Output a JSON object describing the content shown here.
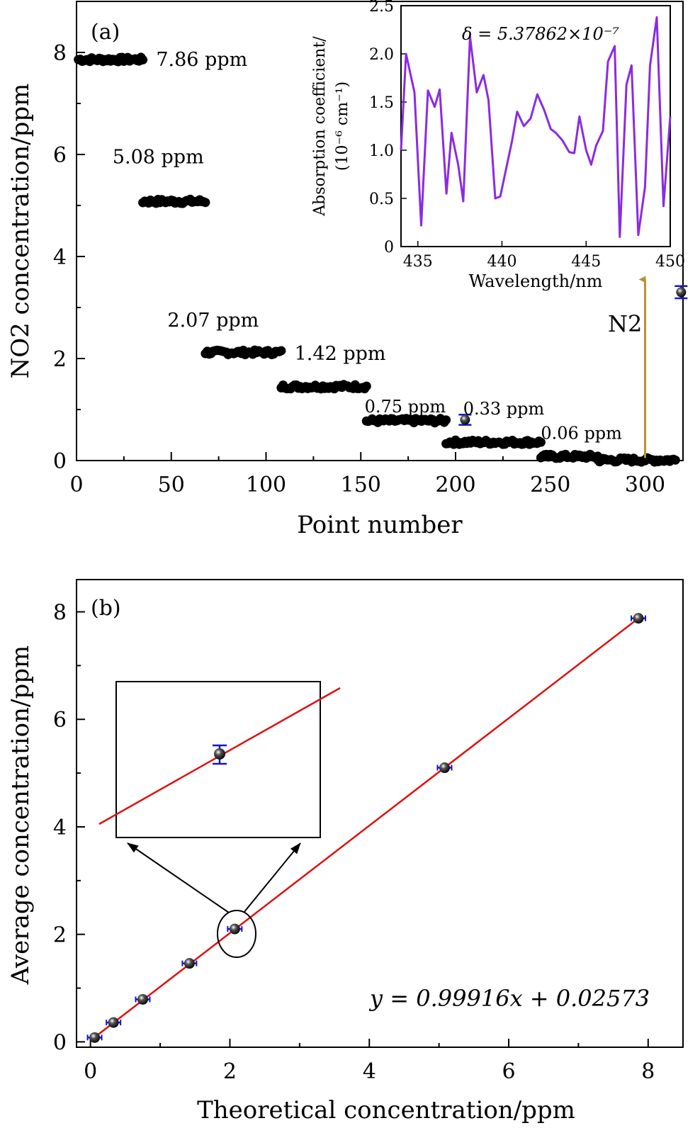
{
  "chart_data": [
    {
      "panel": "(a)",
      "type": "scatter",
      "xlabel": "Point number",
      "ylabel": "NO2 concentration/ppm",
      "xlim": [
        0,
        320
      ],
      "ylim": [
        0,
        9
      ],
      "xticks": [
        0,
        50,
        100,
        150,
        200,
        250,
        300
      ],
      "yticks": [
        0,
        2,
        4,
        6,
        8
      ],
      "segments": [
        {
          "label": "7.86 ppm",
          "x_start": 1,
          "x_end": 35,
          "value": 7.86
        },
        {
          "label": "5.08 ppm",
          "x_start": 35,
          "x_end": 68,
          "value": 5.08
        },
        {
          "label": "2.07 ppm",
          "x_start": 68,
          "x_end": 108,
          "value": 2.12
        },
        {
          "label": "1.42 ppm",
          "x_start": 108,
          "x_end": 153,
          "value": 1.45
        },
        {
          "label": "0.75 ppm",
          "x_start": 153,
          "x_end": 195,
          "value": 0.78
        },
        {
          "label": "0.33 ppm",
          "x_start": 195,
          "x_end": 245,
          "value": 0.36
        },
        {
          "label": "0.06 ppm",
          "x_start": 245,
          "x_end": 275,
          "value": 0.08
        },
        {
          "label": "",
          "x_start": 275,
          "x_end": 316,
          "value": 0.01
        }
      ],
      "errorbar_points": [
        {
          "x": 205,
          "y": 0.8,
          "err": 0.1
        },
        {
          "x": 319,
          "y": 3.3,
          "err": 0.12
        }
      ],
      "arrow": {
        "label": "N2",
        "x": 300,
        "y_from": 0.05,
        "y_to": 3.55,
        "color": "#b8923a"
      },
      "inset": {
        "type": "line",
        "xlabel": "Wavelength/nm",
        "ylabel_line1": "Absorption coefficient/",
        "ylabel_line2": "(10⁻⁶ cm⁻¹)",
        "annotation": "δ = 5.37862×10⁻⁷",
        "xlim": [
          434,
          450
        ],
        "ylim": [
          0,
          2.5
        ],
        "xticks": [
          435,
          440,
          445,
          450
        ],
        "yticks": [
          0,
          0.5,
          1.0,
          1.5,
          2.0,
          2.5
        ],
        "color": "#8a2be2",
        "x": [
          434,
          434.3,
          434.8,
          435.2,
          435.6,
          436.0,
          436.3,
          436.7,
          437.0,
          437.4,
          437.7,
          438.1,
          438.5,
          438.9,
          439.2,
          439.6,
          439.9,
          440.3,
          440.6,
          440.9,
          441.3,
          441.7,
          442.1,
          442.5,
          442.9,
          443.2,
          443.6,
          444.0,
          444.3,
          444.6,
          445.0,
          445.3,
          445.6,
          446.0,
          446.3,
          446.7,
          447.0,
          447.4,
          447.7,
          448.1,
          448.5,
          448.8,
          449.2,
          449.6,
          450.0
        ],
        "y": [
          1.0,
          2.0,
          1.6,
          0.22,
          1.62,
          1.45,
          1.63,
          0.55,
          1.18,
          0.85,
          0.47,
          2.18,
          1.6,
          1.78,
          1.52,
          0.5,
          0.52,
          0.85,
          1.1,
          1.4,
          1.25,
          1.33,
          1.58,
          1.42,
          1.22,
          1.18,
          1.1,
          0.98,
          0.97,
          1.35,
          1.0,
          0.85,
          1.05,
          1.2,
          1.92,
          2.08,
          0.1,
          1.68,
          1.88,
          0.12,
          0.62,
          1.88,
          2.38,
          0.42,
          1.35
        ]
      }
    },
    {
      "panel": "(b)",
      "type": "scatter",
      "xlabel": "Theoretical concentration/ppm",
      "ylabel": "Average concentration/ppm",
      "xlim": [
        -0.2,
        8.5
      ],
      "ylim": [
        -0.1,
        8.6
      ],
      "xticks": [
        0,
        2,
        4,
        6,
        8
      ],
      "yticks": [
        0,
        2,
        4,
        6,
        8
      ],
      "points": [
        {
          "x": 0.06,
          "y": 0.08,
          "err": 0.04
        },
        {
          "x": 0.33,
          "y": 0.36,
          "err": 0.04
        },
        {
          "x": 0.75,
          "y": 0.79,
          "err": 0.04
        },
        {
          "x": 1.42,
          "y": 1.46,
          "err": 0.04
        },
        {
          "x": 2.07,
          "y": 2.1,
          "err": 0.04
        },
        {
          "x": 5.08,
          "y": 5.1,
          "err": 0.04
        },
        {
          "x": 7.86,
          "y": 7.88,
          "err": 0.04
        }
      ],
      "fit": {
        "slope": 0.99916,
        "intercept": 0.02573,
        "x_range": [
          0.0,
          7.9
        ],
        "color": "#e01010"
      },
      "equation": "y = 0.99916x + 0.02573",
      "zoom": {
        "highlighted_x": 2.07,
        "highlighted_y": 2.1
      }
    }
  ]
}
